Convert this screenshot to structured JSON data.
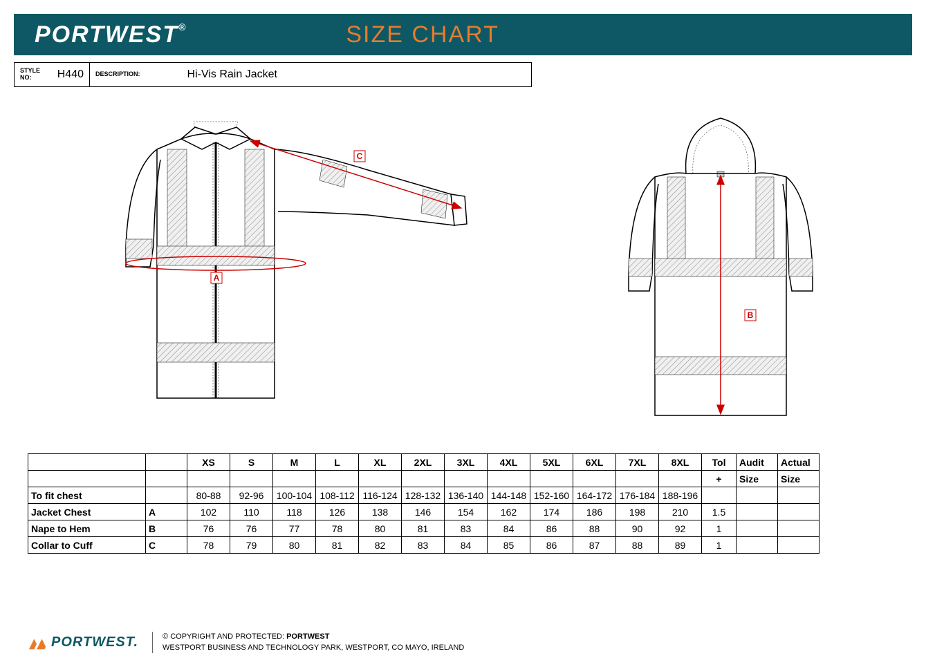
{
  "header": {
    "brand": "PORTWEST",
    "title": "SIZE CHART",
    "brand_color": "#ffffff",
    "title_color": "#e87b2b",
    "bg_color": "#0d5864"
  },
  "info": {
    "style_label": "STYLE NO:",
    "style_value": "H440",
    "desc_label": "DESCRIPTION:",
    "desc_value": "Hi-Vis Rain Jacket"
  },
  "diagram": {
    "label_a": "A",
    "label_b": "B",
    "label_c": "C",
    "outline_color": "#000000",
    "measure_color": "#cc0000"
  },
  "table": {
    "sizes": [
      "XS",
      "S",
      "M",
      "L",
      "XL",
      "2XL",
      "3XL",
      "4XL",
      "5XL",
      "6XL",
      "7XL",
      "8XL"
    ],
    "tol_header": "Tol",
    "tol_sub": "+",
    "audit_header": "Audit",
    "audit_sub": "Size",
    "actual_header": "Actual",
    "actual_sub": "Size",
    "rows": [
      {
        "label": "To fit chest",
        "letter": "",
        "values": [
          "80-88",
          "92-96",
          "100-104",
          "108-112",
          "116-124",
          "128-132",
          "136-140",
          "144-148",
          "152-160",
          "164-172",
          "176-184",
          "188-196"
        ],
        "tol": ""
      },
      {
        "label": "Jacket Chest",
        "letter": "A",
        "values": [
          "102",
          "110",
          "118",
          "126",
          "138",
          "146",
          "154",
          "162",
          "174",
          "186",
          "198",
          "210"
        ],
        "tol": "1.5"
      },
      {
        "label": "Nape to Hem",
        "letter": "B",
        "values": [
          "76",
          "76",
          "77",
          "78",
          "80",
          "81",
          "83",
          "84",
          "86",
          "88",
          "90",
          "92"
        ],
        "tol": "1"
      },
      {
        "label": "Collar to Cuff",
        "letter": "C",
        "values": [
          "78",
          "79",
          "80",
          "81",
          "82",
          "83",
          "84",
          "85",
          "86",
          "87",
          "88",
          "89"
        ],
        "tol": "1"
      }
    ]
  },
  "footer": {
    "brand": "PORTWEST",
    "copyright": "© COPYRIGHT AND PROTECTED: ",
    "copyright_bold": "PORTWEST",
    "address": "WESTPORT BUSINESS AND TECHNOLOGY PARK, WESTPORT, CO MAYO, IRELAND",
    "logo_color": "#0d5864",
    "accent_color": "#e87b2b"
  }
}
